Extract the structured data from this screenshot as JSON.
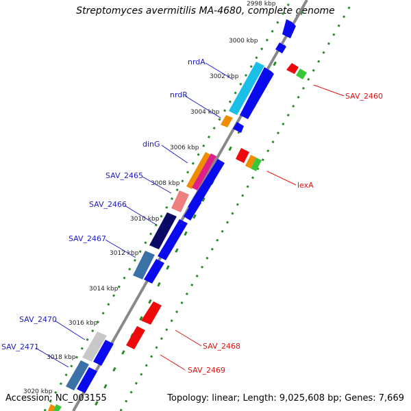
{
  "title": "Streptomyces avermitilis MA-4680, complete genome",
  "footer": {
    "accession": "Accession: NC_003155",
    "stats": "Topology: linear; Length: 9,025,608 bp; Genes: 7,669"
  },
  "colors": {
    "forward_gene": "#0a0aee",
    "reverse_gene": "#ee0a0a",
    "backbone": "#888888",
    "gc_ticks": "#2a8a2a",
    "label_left": "#1a1ac8",
    "label_right": "#e01010"
  },
  "scale_labels": [
    "2998 kbp",
    "3000 kbp",
    "3002 kbp",
    "3004 kbp",
    "3006 kbp",
    "3008 kbp",
    "3010 kbp",
    "3012 kbp",
    "3014 kbp",
    "3016 kbp",
    "3018 kbp",
    "3020 kbp"
  ],
  "left_labels": [
    "nrdA",
    "nrdR",
    "dinG",
    "SAV_2465",
    "SAV_2466",
    "SAV_2467",
    "SAV_2470",
    "SAV_2471"
  ],
  "right_labels": [
    "SAV_2460",
    "lexA",
    "SAV_2468",
    "SAV_2469"
  ]
}
